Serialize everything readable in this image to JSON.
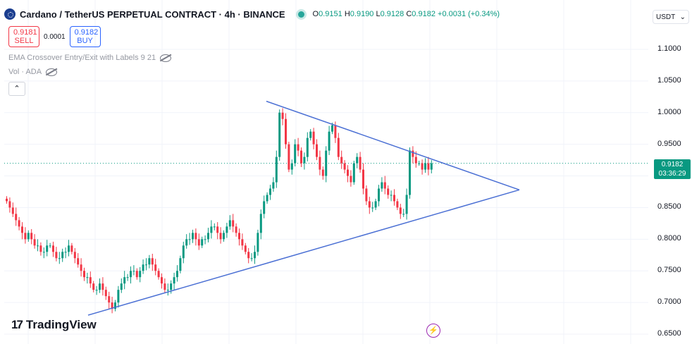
{
  "header": {
    "title": "Cardano / TetherUS PERPETUAL CONTRACT · 4h · BINANCE",
    "ohlc": {
      "o_label": "O",
      "o": "0.9151",
      "h_label": "H",
      "h": "0.9190",
      "l_label": "L",
      "l": "0.9128",
      "c_label": "C",
      "c": "0.9182",
      "change": "+0.0031 (+0.34%)"
    },
    "coin_icon": "cardano-icon"
  },
  "trade": {
    "sell_price": "0.9181",
    "sell_label": "SELL",
    "spread": "0.0001",
    "buy_price": "0.9182",
    "buy_label": "BUY"
  },
  "indicators": [
    {
      "label": "EMA Crossover Entry/Exit with Labels 9 21",
      "icon": "eye-hidden-icon"
    },
    {
      "label": "Vol · ADA",
      "icon": "eye-hidden-icon"
    }
  ],
  "currency": "USDT",
  "current_price": {
    "value": "0.9182",
    "countdown": "03:36:29"
  },
  "branding": "TradingView",
  "colors": {
    "up": "#089981",
    "down": "#f23645",
    "trendline": "#4a6fd4",
    "accent": "#2962ff"
  },
  "chart_data": {
    "type": "candlestick",
    "y_ticks": [
      "1.1000",
      "1.0500",
      "1.0000",
      "0.9500",
      "0.9000",
      "0.8500",
      "0.8000",
      "0.7500",
      "0.7000",
      "0.6500"
    ],
    "ylim": [
      0.65,
      1.1
    ],
    "close_series": [
      0.86,
      0.85,
      0.84,
      0.83,
      0.82,
      0.81,
      0.8,
      0.81,
      0.8,
      0.79,
      0.79,
      0.78,
      0.78,
      0.79,
      0.79,
      0.78,
      0.77,
      0.77,
      0.78,
      0.78,
      0.79,
      0.78,
      0.77,
      0.76,
      0.75,
      0.74,
      0.74,
      0.73,
      0.72,
      0.72,
      0.73,
      0.72,
      0.71,
      0.7,
      0.69,
      0.7,
      0.72,
      0.73,
      0.74,
      0.74,
      0.75,
      0.75,
      0.74,
      0.75,
      0.76,
      0.76,
      0.77,
      0.76,
      0.75,
      0.74,
      0.73,
      0.72,
      0.72,
      0.73,
      0.74,
      0.75,
      0.77,
      0.79,
      0.8,
      0.8,
      0.81,
      0.8,
      0.79,
      0.8,
      0.8,
      0.81,
      0.82,
      0.82,
      0.81,
      0.8,
      0.81,
      0.82,
      0.83,
      0.82,
      0.81,
      0.8,
      0.79,
      0.78,
      0.77,
      0.77,
      0.78,
      0.81,
      0.84,
      0.86,
      0.87,
      0.88,
      0.89,
      0.93,
      1.0,
      0.99,
      0.95,
      0.91,
      0.92,
      0.95,
      0.94,
      0.92,
      0.93,
      0.96,
      0.97,
      0.95,
      0.93,
      0.91,
      0.9,
      0.94,
      0.97,
      0.98,
      0.96,
      0.93,
      0.92,
      0.91,
      0.9,
      0.89,
      0.92,
      0.93,
      0.91,
      0.88,
      0.86,
      0.85,
      0.85,
      0.86,
      0.88,
      0.89,
      0.88,
      0.87,
      0.87,
      0.86,
      0.85,
      0.84,
      0.84,
      0.87,
      0.94,
      0.93,
      0.92,
      0.92,
      0.91,
      0.92,
      0.91,
      0.92
    ],
    "trendlines": [
      {
        "from": [
          0,
          1.018
        ],
        "to": [
          1,
          0.878
        ]
      },
      {
        "from": [
          0,
          0.68
        ],
        "to": [
          1,
          0.878
        ]
      }
    ]
  }
}
